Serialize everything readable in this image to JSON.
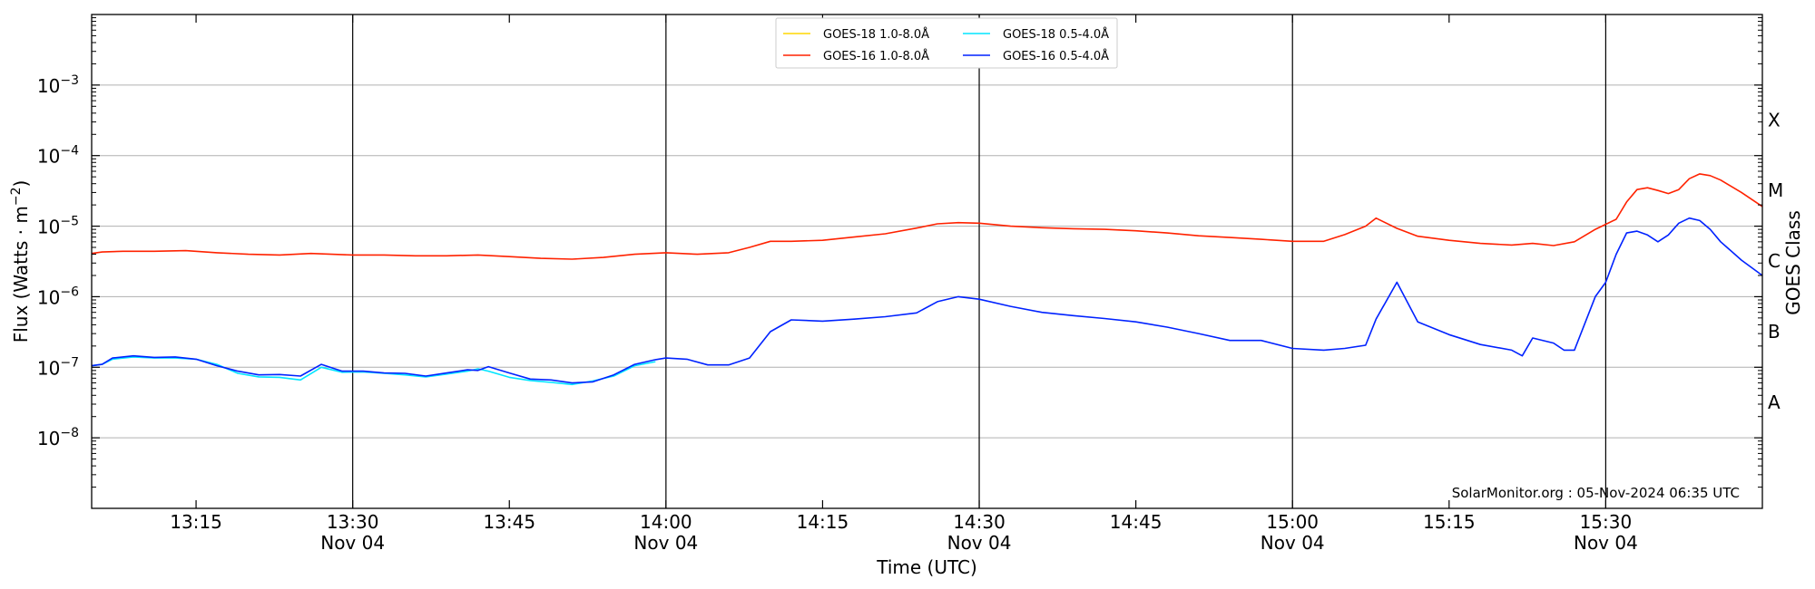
{
  "chart_data": {
    "type": "line",
    "title": "",
    "xlabel": "Time (UTC)",
    "ylabel": "Flux (Watts · m⁻²)",
    "y2label": "GOES Class",
    "yscale": "log",
    "ylim": [
      1e-09,
      0.01
    ],
    "xlim": [
      "13:05",
      "15:45"
    ],
    "x_unit": "minutes",
    "grid": "horizontal",
    "legend_location": "top-center",
    "x_ticks": [
      {
        "t": "13:15",
        "label": "13:15",
        "date": ""
      },
      {
        "t": "13:30",
        "label": "13:30",
        "date": "Nov 04"
      },
      {
        "t": "13:45",
        "label": "13:45",
        "date": ""
      },
      {
        "t": "14:00",
        "label": "14:00",
        "date": "Nov 04"
      },
      {
        "t": "14:15",
        "label": "14:15",
        "date": ""
      },
      {
        "t": "14:30",
        "label": "14:30",
        "date": "Nov 04"
      },
      {
        "t": "14:45",
        "label": "14:45",
        "date": ""
      },
      {
        "t": "15:00",
        "label": "15:00",
        "date": "Nov 04"
      },
      {
        "t": "15:15",
        "label": "15:15",
        "date": ""
      },
      {
        "t": "15:30",
        "label": "15:30",
        "date": "Nov 04"
      }
    ],
    "vlines": [
      "13:30",
      "14:00",
      "14:30",
      "15:00",
      "15:30"
    ],
    "y_ticks": [
      {
        "value": 1e-08,
        "base": "10",
        "exp": "−8"
      },
      {
        "value": 1e-07,
        "base": "10",
        "exp": "−7"
      },
      {
        "value": 1e-06,
        "base": "10",
        "exp": "−6"
      },
      {
        "value": 1e-05,
        "base": "10",
        "exp": "−5"
      },
      {
        "value": 0.0001,
        "base": "10",
        "exp": "−4"
      },
      {
        "value": 0.001,
        "base": "10",
        "exp": "−3"
      }
    ],
    "goes_classes": [
      {
        "label": "A",
        "value": 3.2e-08
      },
      {
        "label": "B",
        "value": 3.2e-07
      },
      {
        "label": "C",
        "value": 3.2e-06
      },
      {
        "label": "M",
        "value": 3.2e-05
      },
      {
        "label": "X",
        "value": 0.00032
      }
    ],
    "credit": "SolarMonitor.org : 05-Nov-2024 06:35 UTC",
    "series": [
      {
        "name": "GOES-18 1.0-8.0Å",
        "color": "#ffd700",
        "x": [],
        "y": []
      },
      {
        "name": "GOES-18 0.5-4.0Å",
        "color": "#00e5ff",
        "x": [
          "13:05",
          "13:06",
          "13:07",
          "13:09",
          "13:11",
          "13:13",
          "13:15",
          "13:17",
          "13:19",
          "13:21",
          "13:23",
          "13:25",
          "13:27",
          "13:29",
          "13:31",
          "13:33",
          "13:35",
          "13:37",
          "13:39",
          "13:41",
          "13:42",
          "13:43",
          "13:45",
          "13:47",
          "13:49",
          "13:51",
          "13:53",
          "13:55",
          "13:57",
          "13:59"
        ],
        "y": [
          1.05e-07,
          1.1e-07,
          1.3e-07,
          1.4e-07,
          1.35e-07,
          1.35e-07,
          1.3e-07,
          1.1e-07,
          8.2e-08,
          7.3e-08,
          7.2e-08,
          6.6e-08,
          1e-07,
          8.5e-08,
          8.6e-08,
          8.2e-08,
          7.8e-08,
          7.3e-08,
          8e-08,
          8.8e-08,
          9.5e-08,
          8.8e-08,
          7.2e-08,
          6.5e-08,
          6.1e-08,
          5.7e-08,
          6.4e-08,
          7.5e-08,
          1.05e-07,
          1.2e-07
        ]
      },
      {
        "name": "GOES-16 1.0-8.0Å",
        "color": "#ff2200",
        "x": [
          "13:05",
          "13:06",
          "13:08",
          "13:11",
          "13:14",
          "13:17",
          "13:20",
          "13:23",
          "13:26",
          "13:28",
          "13:30",
          "13:33",
          "13:36",
          "13:39",
          "13:42",
          "13:45",
          "13:48",
          "13:51",
          "13:54",
          "13:57",
          "14:00",
          "14:03",
          "14:06",
          "14:08",
          "14:10",
          "14:12",
          "14:15",
          "14:18",
          "14:21",
          "14:24",
          "14:26",
          "14:28",
          "14:30",
          "14:33",
          "14:36",
          "14:39",
          "14:42",
          "14:45",
          "14:48",
          "14:51",
          "14:54",
          "14:57",
          "15:00",
          "15:03",
          "15:05",
          "15:07",
          "15:08",
          "15:10",
          "15:12",
          "15:15",
          "15:18",
          "15:21",
          "15:23",
          "15:25",
          "15:27",
          "15:29",
          "15:31",
          "15:32",
          "15:33",
          "15:34",
          "15:35",
          "15:36",
          "15:37",
          "15:38",
          "15:39",
          "15:40",
          "15:41",
          "15:43",
          "15:45"
        ],
        "y": [
          4.1e-06,
          4.3e-06,
          4.4e-06,
          4.4e-06,
          4.5e-06,
          4.2e-06,
          4e-06,
          3.9e-06,
          4.1e-06,
          4e-06,
          3.9e-06,
          3.9e-06,
          3.8e-06,
          3.8e-06,
          3.9e-06,
          3.7e-06,
          3.5e-06,
          3.4e-06,
          3.6e-06,
          4e-06,
          4.2e-06,
          4e-06,
          4.2e-06,
          5e-06,
          6.1e-06,
          6.1e-06,
          6.3e-06,
          7e-06,
          7.8e-06,
          9.4e-06,
          1.08e-05,
          1.12e-05,
          1.1e-05,
          1e-05,
          9.5e-06,
          9.2e-06,
          9e-06,
          8.6e-06,
          8e-06,
          7.3e-06,
          6.9e-06,
          6.5e-06,
          6.1e-06,
          6.1e-06,
          7.6e-06,
          1e-05,
          1.3e-05,
          9.3e-06,
          7.2e-06,
          6.3e-06,
          5.7e-06,
          5.4e-06,
          5.7e-06,
          5.3e-06,
          6e-06,
          9e-06,
          1.25e-05,
          2.2e-05,
          3.3e-05,
          3.5e-05,
          3.2e-05,
          2.9e-05,
          3.3e-05,
          4.7e-05,
          5.5e-05,
          5.2e-05,
          4.5e-05,
          3e-05,
          1.9e-05
        ]
      },
      {
        "name": "GOES-16 0.5-4.0Å",
        "color": "#0022ff",
        "x": [
          "13:05",
          "13:06",
          "13:07",
          "13:09",
          "13:11",
          "13:13",
          "13:15",
          "13:17",
          "13:19",
          "13:21",
          "13:23",
          "13:25",
          "13:27",
          "13:29",
          "13:31",
          "13:33",
          "13:35",
          "13:37",
          "13:39",
          "13:41",
          "13:42",
          "13:43",
          "13:45",
          "13:47",
          "13:49",
          "13:51",
          "13:53",
          "13:55",
          "13:57",
          "13:59",
          "14:00",
          "14:02",
          "14:04",
          "14:06",
          "14:08",
          "14:10",
          "14:12",
          "14:15",
          "14:18",
          "14:21",
          "14:24",
          "14:26",
          "14:28",
          "14:30",
          "14:33",
          "14:36",
          "14:39",
          "14:42",
          "14:45",
          "14:48",
          "14:51",
          "14:54",
          "14:57",
          "15:00",
          "15:03",
          "15:05",
          "15:07",
          "15:08",
          "15:10",
          "15:12",
          "15:15",
          "15:18",
          "15:21",
          "15:22",
          "15:23",
          "15:25",
          "15:26",
          "15:27",
          "15:29",
          "15:30",
          "15:31",
          "15:32",
          "15:33",
          "15:34",
          "15:35",
          "15:36",
          "15:37",
          "15:38",
          "15:39",
          "15:40",
          "15:41",
          "15:43",
          "15:45"
        ],
        "y": [
          1.05e-07,
          1.1e-07,
          1.35e-07,
          1.45e-07,
          1.38e-07,
          1.4e-07,
          1.3e-07,
          1.05e-07,
          8.8e-08,
          7.8e-08,
          7.9e-08,
          7.5e-08,
          1.1e-07,
          8.8e-08,
          8.8e-08,
          8.3e-08,
          8.2e-08,
          7.5e-08,
          8.3e-08,
          9.2e-08,
          9e-08,
          1.02e-07,
          8.3e-08,
          6.8e-08,
          6.6e-08,
          6e-08,
          6.2e-08,
          7.8e-08,
          1.1e-07,
          1.28e-07,
          1.35e-07,
          1.3e-07,
          1.08e-07,
          1.08e-07,
          1.35e-07,
          3.2e-07,
          4.7e-07,
          4.5e-07,
          4.8e-07,
          5.2e-07,
          5.9e-07,
          8.5e-07,
          1e-06,
          9.2e-07,
          7.3e-07,
          6e-07,
          5.4e-07,
          4.9e-07,
          4.4e-07,
          3.7e-07,
          3e-07,
          2.4e-07,
          2.4e-07,
          1.85e-07,
          1.75e-07,
          1.85e-07,
          2.05e-07,
          4.8e-07,
          1.6e-06,
          4.4e-07,
          2.9e-07,
          2.1e-07,
          1.75e-07,
          1.45e-07,
          2.6e-07,
          2.2e-07,
          1.75e-07,
          1.75e-07,
          1e-06,
          1.6e-06,
          4e-06,
          8e-06,
          8.5e-06,
          7.5e-06,
          6e-06,
          7.5e-06,
          1.1e-05,
          1.3e-05,
          1.2e-05,
          9e-06,
          6e-06,
          3.3e-06,
          2e-06
        ]
      }
    ]
  }
}
